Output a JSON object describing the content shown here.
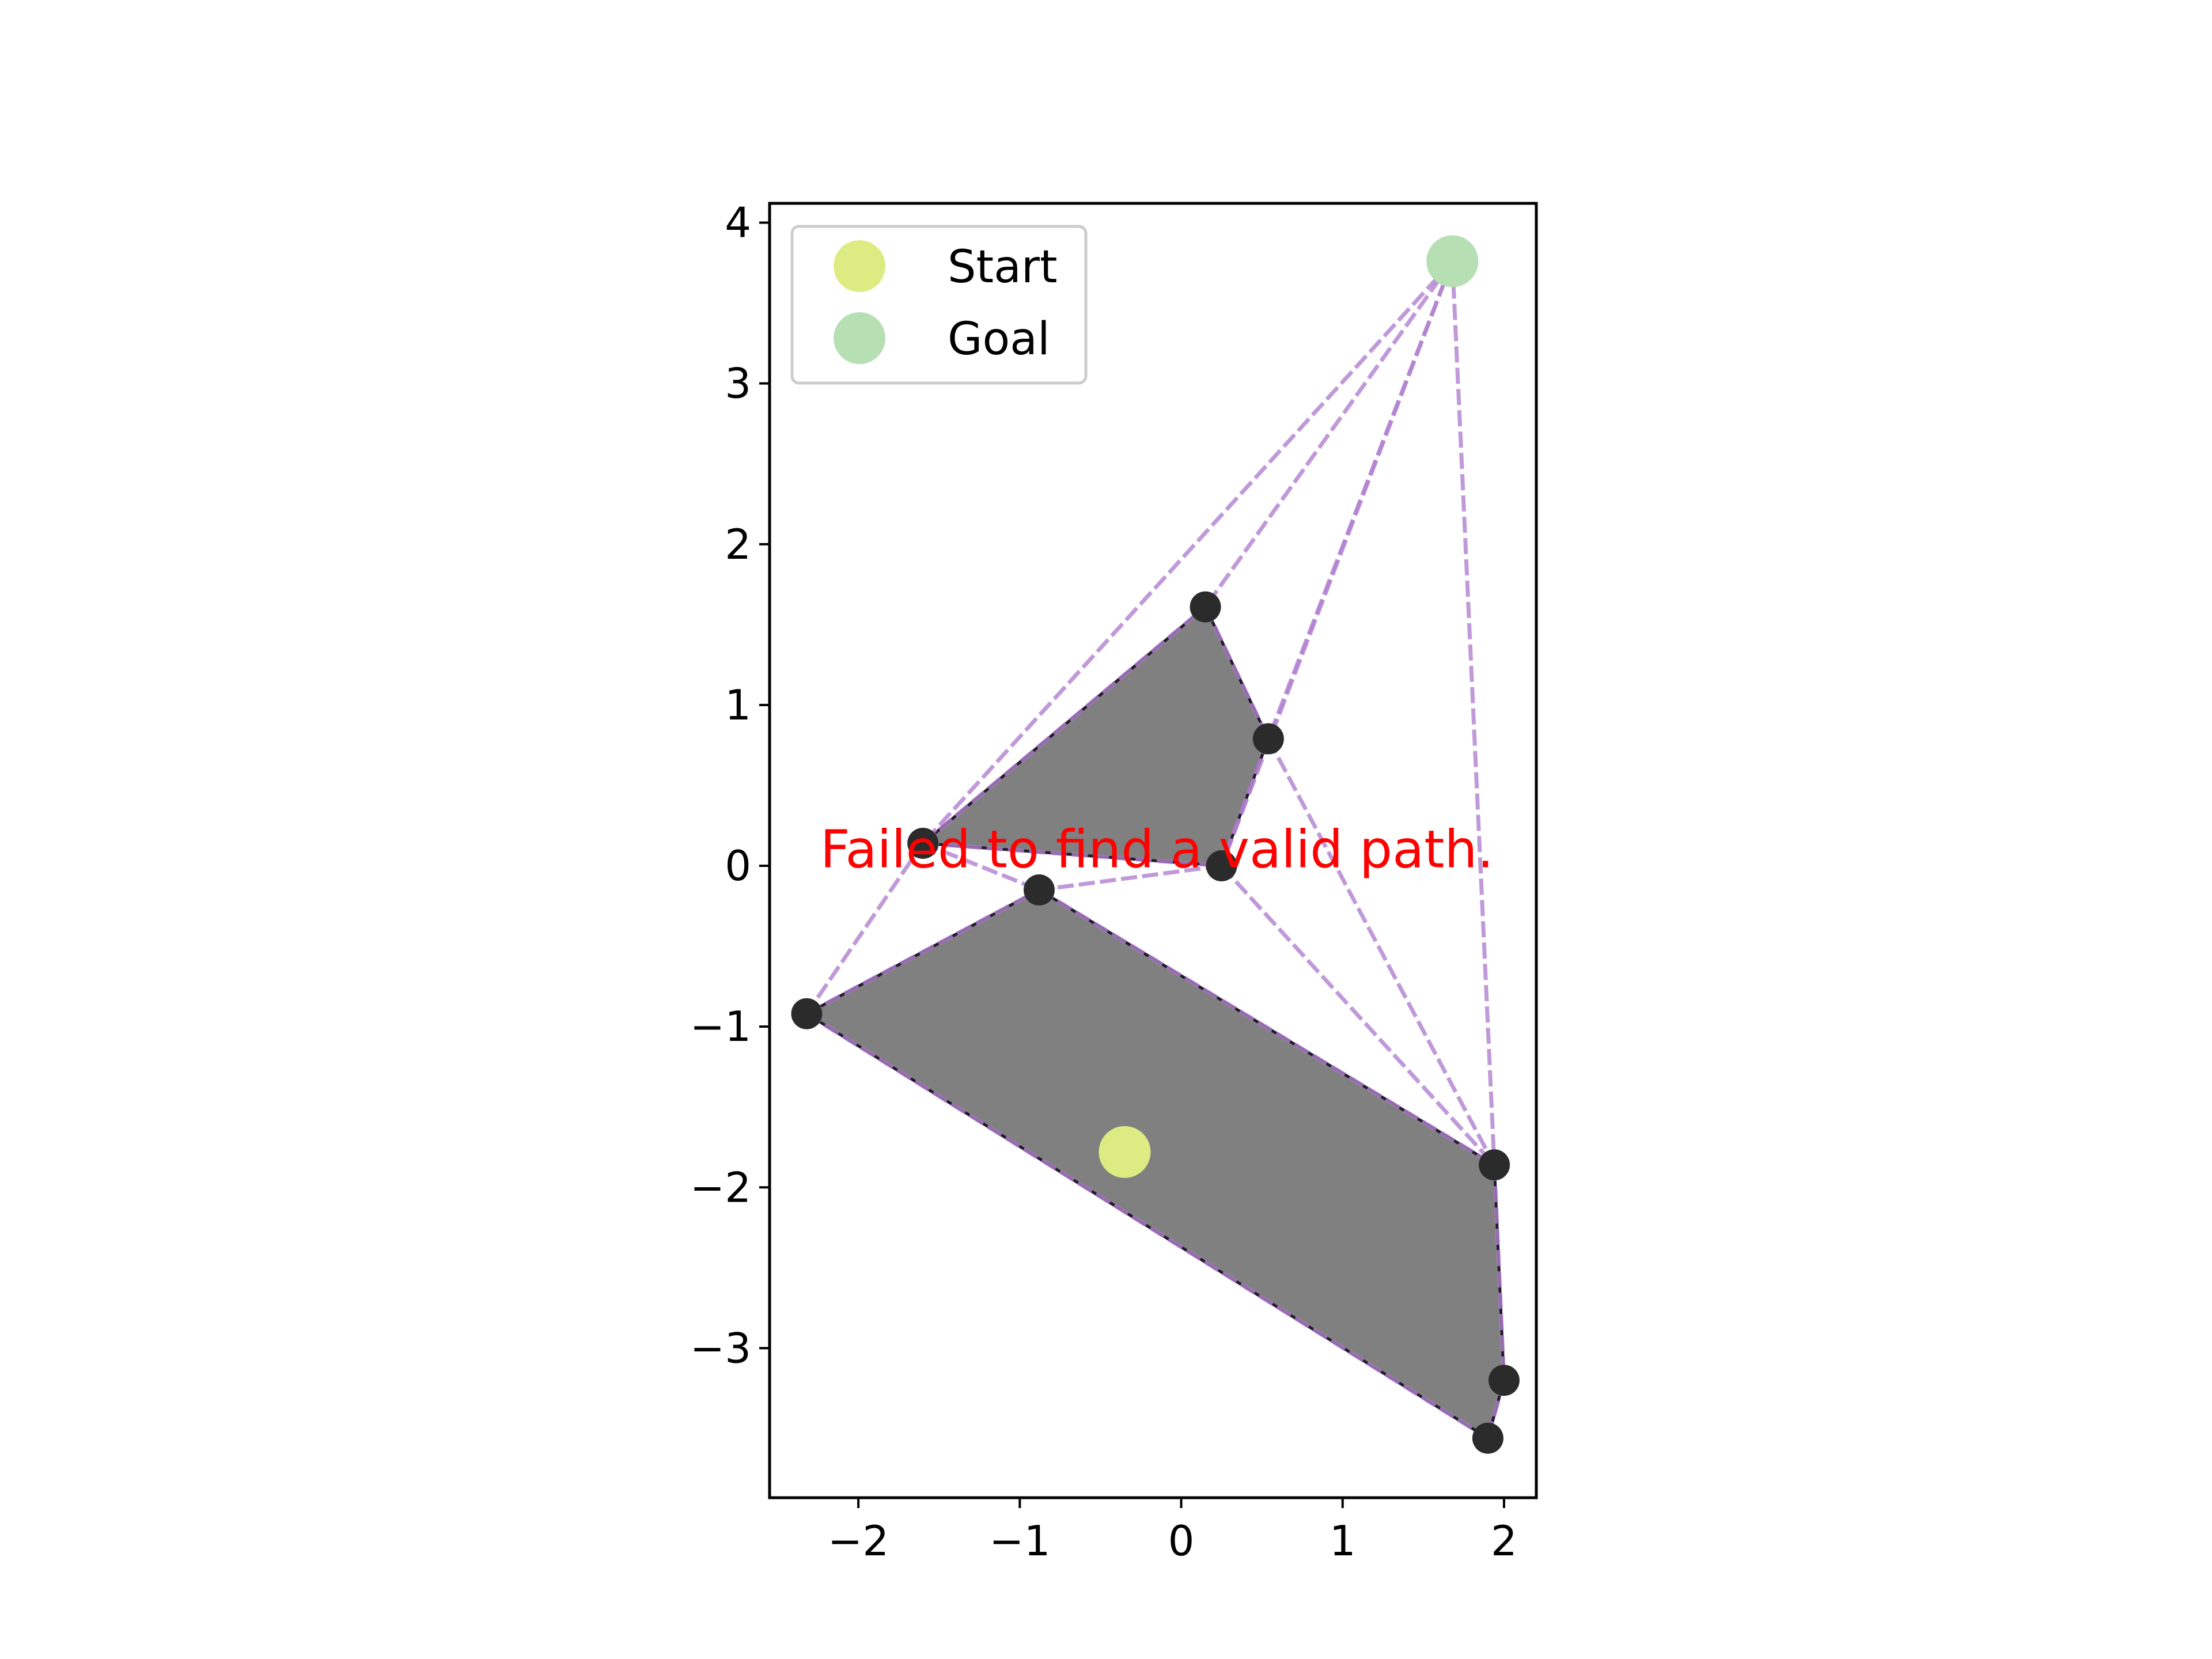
{
  "chart_data": {
    "type": "scatter",
    "title": "",
    "xlabel": "",
    "ylabel": "",
    "xlim": [
      -2.55,
      2.2
    ],
    "ylim": [
      -3.93,
      4.12
    ],
    "grid": false,
    "legend_position": "top-left",
    "x_ticks": [
      {
        "value": -2,
        "label": "−2"
      },
      {
        "value": -1,
        "label": "−1"
      },
      {
        "value": 0,
        "label": "0"
      },
      {
        "value": 1,
        "label": "1"
      },
      {
        "value": 2,
        "label": "2"
      }
    ],
    "y_ticks": [
      {
        "value": 4,
        "label": "4"
      },
      {
        "value": 3,
        "label": "3"
      },
      {
        "value": 2,
        "label": "2"
      },
      {
        "value": 1,
        "label": "1"
      },
      {
        "value": 0,
        "label": "0"
      },
      {
        "value": -1,
        "label": "−1"
      },
      {
        "value": -2,
        "label": "−2"
      },
      {
        "value": -3,
        "label": "−3"
      }
    ],
    "obstacles": [
      {
        "vertices": [
          [
            -1.6,
            0.14
          ],
          [
            0.15,
            1.61
          ],
          [
            0.54,
            0.79
          ],
          [
            0.25,
            0.0
          ]
        ]
      },
      {
        "vertices": [
          [
            -2.32,
            -0.92
          ],
          [
            -0.88,
            -0.15
          ],
          [
            1.94,
            -1.86
          ],
          [
            2.0,
            -3.2
          ],
          [
            1.9,
            -3.56
          ]
        ]
      }
    ],
    "vertices": [
      [
        -1.6,
        0.14
      ],
      [
        0.15,
        1.61
      ],
      [
        0.54,
        0.79
      ],
      [
        0.25,
        0.0
      ],
      [
        -2.32,
        -0.92
      ],
      [
        -0.88,
        -0.15
      ],
      [
        1.94,
        -1.86
      ],
      [
        2.0,
        -3.2
      ],
      [
        1.9,
        -3.56
      ]
    ],
    "edges": [
      [
        [
          1.68,
          3.76
        ],
        [
          -1.6,
          0.14
        ]
      ],
      [
        [
          1.68,
          3.76
        ],
        [
          0.15,
          1.61
        ]
      ],
      [
        [
          1.68,
          3.76
        ],
        [
          0.54,
          0.79
        ]
      ],
      [
        [
          1.68,
          3.76
        ],
        [
          0.25,
          0.0
        ]
      ],
      [
        [
          1.68,
          3.76
        ],
        [
          1.94,
          -1.86
        ]
      ],
      [
        [
          -1.6,
          0.14
        ],
        [
          0.15,
          1.61
        ]
      ],
      [
        [
          -1.6,
          0.14
        ],
        [
          -2.32,
          -0.92
        ]
      ],
      [
        [
          -1.6,
          0.14
        ],
        [
          -0.88,
          -0.15
        ]
      ],
      [
        [
          -1.6,
          0.14
        ],
        [
          0.25,
          0.0
        ]
      ],
      [
        [
          0.15,
          1.61
        ],
        [
          0.54,
          0.79
        ]
      ],
      [
        [
          0.54,
          0.79
        ],
        [
          0.25,
          0.0
        ]
      ],
      [
        [
          0.54,
          0.79
        ],
        [
          1.94,
          -1.86
        ]
      ],
      [
        [
          0.25,
          0.0
        ],
        [
          -0.88,
          -0.15
        ]
      ],
      [
        [
          0.25,
          0.0
        ],
        [
          1.94,
          -1.86
        ]
      ],
      [
        [
          -2.32,
          -0.92
        ],
        [
          -0.88,
          -0.15
        ]
      ],
      [
        [
          -2.32,
          -0.92
        ],
        [
          1.9,
          -3.56
        ]
      ],
      [
        [
          -0.88,
          -0.15
        ],
        [
          1.94,
          -1.86
        ]
      ],
      [
        [
          1.94,
          -1.86
        ],
        [
          2.0,
          -3.2
        ]
      ],
      [
        [
          2.0,
          -3.2
        ],
        [
          1.9,
          -3.56
        ]
      ]
    ],
    "start": {
      "x": -0.35,
      "y": -1.78
    },
    "goal": {
      "x": 1.68,
      "y": 3.76
    },
    "legend": [
      {
        "label": "Start",
        "color": "#dcec82"
      },
      {
        "label": "Goal",
        "color": "#b6dfb4"
      }
    ],
    "annotation": {
      "text": "Failed to find a valid path.",
      "x": -0.15,
      "y": 0.1,
      "color": "#ff0000"
    },
    "colors": {
      "obstacle_fill": "#808080",
      "obstacle_edge": "#231a2b",
      "edge_color": "#b07fd0",
      "vertex_color": "#2b2b2b"
    }
  }
}
